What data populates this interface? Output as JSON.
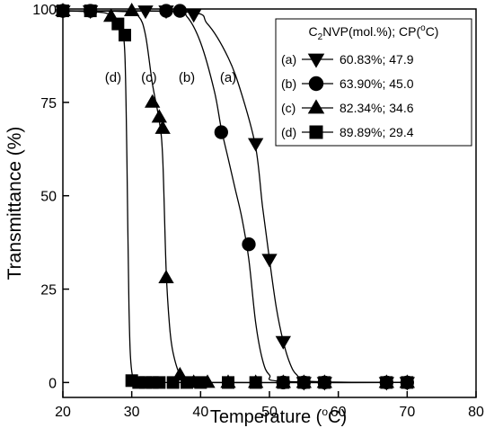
{
  "chart_data": {
    "type": "scatter",
    "xlabel_main": "Temperature (",
    "xlabel_sup": "o",
    "xlabel_tail": "C)",
    "ylabel": "Transmittance (%)",
    "xlim": [
      20,
      80
    ],
    "ylim": [
      -4,
      100
    ],
    "x_ticks": [
      20,
      30,
      40,
      50,
      60,
      70,
      80
    ],
    "y_ticks": [
      0,
      25,
      50,
      75,
      100
    ],
    "grid": false,
    "legend_position": "top-right",
    "legend_header": {
      "left_main": "C",
      "left_sub": "2",
      "left_tail": "NVP(mol.%); CP(",
      "right_sup": "o",
      "right_tail": "C)"
    },
    "series": [
      {
        "name": "(a)",
        "legend_text": "60.83%;   47.9",
        "marker": "triangle-down",
        "curve_label": "(a)",
        "points": [
          [
            20,
            99.5
          ],
          [
            24,
            99.5
          ],
          [
            32,
            99.5
          ],
          [
            35,
            99.5
          ],
          [
            39,
            98.5
          ],
          [
            48,
            64
          ],
          [
            50,
            33
          ],
          [
            52,
            11
          ],
          [
            55,
            0
          ],
          [
            58,
            0
          ],
          [
            67,
            0
          ],
          [
            70,
            0
          ]
        ],
        "curve": [
          [
            20,
            99.5
          ],
          [
            38,
            99.2
          ],
          [
            41,
            96
          ],
          [
            44,
            87
          ],
          [
            46,
            77
          ],
          [
            48,
            63
          ],
          [
            49,
            47
          ],
          [
            50,
            33
          ],
          [
            51,
            20
          ],
          [
            52,
            11
          ],
          [
            53,
            5
          ],
          [
            54,
            2
          ],
          [
            56,
            0.3
          ],
          [
            70,
            0
          ]
        ]
      },
      {
        "name": "(b)",
        "legend_text": "63.90%;   45.0",
        "marker": "circle",
        "curve_label": "(b)",
        "points": [
          [
            20,
            99.5
          ],
          [
            24,
            99.5
          ],
          [
            35,
            99.5
          ],
          [
            37,
            99.5
          ],
          [
            43,
            67
          ],
          [
            47,
            37
          ],
          [
            52,
            0
          ],
          [
            55,
            0
          ],
          [
            58,
            0
          ],
          [
            67,
            0
          ],
          [
            70,
            0
          ]
        ],
        "curve": [
          [
            20,
            99.5
          ],
          [
            36,
            99.3
          ],
          [
            38,
            98
          ],
          [
            40,
            91
          ],
          [
            42,
            78
          ],
          [
            43,
            68
          ],
          [
            44,
            60
          ],
          [
            45,
            52
          ],
          [
            46,
            44
          ],
          [
            47,
            33
          ],
          [
            48,
            16
          ],
          [
            49,
            6
          ],
          [
            50,
            2
          ],
          [
            52,
            0.3
          ],
          [
            70,
            0
          ]
        ]
      },
      {
        "name": "(c)",
        "legend_text": "82.34%;   34.6",
        "marker": "triangle-up",
        "curve_label": "(c)",
        "points": [
          [
            20,
            99.5
          ],
          [
            27,
            98
          ],
          [
            30,
            99.5
          ],
          [
            33,
            75
          ],
          [
            34,
            71
          ],
          [
            34.5,
            68
          ],
          [
            35,
            28
          ],
          [
            37,
            2
          ],
          [
            39,
            0
          ],
          [
            41,
            0
          ],
          [
            44,
            0
          ],
          [
            48,
            0
          ],
          [
            52,
            0
          ],
          [
            55,
            0
          ],
          [
            58,
            0
          ],
          [
            67,
            0
          ],
          [
            70,
            0
          ]
        ],
        "curve": [
          [
            20,
            99.5
          ],
          [
            29,
            99.3
          ],
          [
            31,
            98
          ],
          [
            32,
            93
          ],
          [
            33,
            80
          ],
          [
            34,
            70
          ],
          [
            34.5,
            60
          ],
          [
            35,
            30
          ],
          [
            35.5,
            15
          ],
          [
            36,
            8
          ],
          [
            37,
            2
          ],
          [
            38,
            0.5
          ],
          [
            40,
            0
          ],
          [
            70,
            0
          ]
        ]
      },
      {
        "name": "(d)",
        "legend_text": "89.89%;   29.4",
        "marker": "square",
        "curve_label": "(d)",
        "points": [
          [
            20,
            99.5
          ],
          [
            24,
            99.5
          ],
          [
            28,
            96
          ],
          [
            29,
            93
          ],
          [
            30,
            0.5
          ],
          [
            31,
            0
          ],
          [
            32,
            0
          ],
          [
            33,
            0
          ],
          [
            34,
            0
          ],
          [
            36,
            0
          ],
          [
            38,
            0
          ],
          [
            40,
            0
          ],
          [
            44,
            0
          ],
          [
            48,
            0
          ],
          [
            52,
            0
          ],
          [
            55,
            0
          ],
          [
            58,
            0
          ],
          [
            67,
            0
          ],
          [
            70,
            0
          ]
        ],
        "curve": [
          [
            20,
            99.5
          ],
          [
            26,
            99
          ],
          [
            27.5,
            97
          ],
          [
            28.5,
            94
          ],
          [
            29,
            88
          ],
          [
            29.3,
            60
          ],
          [
            29.6,
            20
          ],
          [
            30,
            3
          ],
          [
            31,
            0.3
          ],
          [
            33,
            0
          ],
          [
            70,
            0
          ]
        ]
      }
    ],
    "curve_labels": [
      {
        "text": "(d)",
        "x": 27.3,
        "y": 82
      },
      {
        "text": "(c)",
        "x": 32.5,
        "y": 82
      },
      {
        "text": "(b)",
        "x": 38.0,
        "y": 82
      },
      {
        "text": "(a)",
        "x": 44.0,
        "y": 82
      }
    ]
  }
}
